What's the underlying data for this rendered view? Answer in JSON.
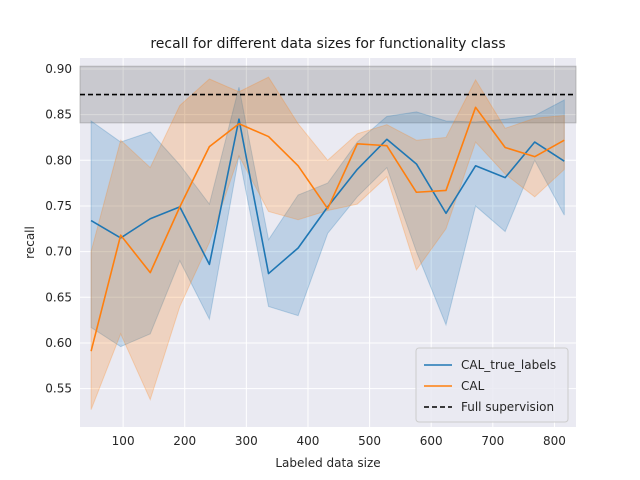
{
  "chart_data": {
    "type": "line",
    "title": "recall for different data sizes for functionality class",
    "xlabel": "Labeled data size",
    "ylabel": "recall",
    "xlim": [
      30,
      835
    ],
    "ylim": [
      0.508,
      0.912
    ],
    "xticks": [
      100,
      200,
      300,
      400,
      500,
      600,
      700,
      800
    ],
    "yticks": [
      0.55,
      0.6,
      0.65,
      0.7,
      0.75,
      0.8,
      0.85,
      0.9
    ],
    "xtick_labels": [
      "100",
      "200",
      "300",
      "400",
      "500",
      "600",
      "700",
      "800"
    ],
    "ytick_labels": [
      "0.55",
      "0.60",
      "0.65",
      "0.70",
      "0.75",
      "0.80",
      "0.85",
      "0.90"
    ],
    "grid": true,
    "legend_position": "lower-right",
    "x": [
      48,
      96,
      144,
      192,
      240,
      288,
      336,
      384,
      432,
      480,
      528,
      576,
      624,
      672,
      720,
      768,
      816
    ],
    "series": [
      {
        "name": "CAL_true_labels",
        "color": "#1f77b4",
        "values": [
          0.734,
          0.715,
          0.736,
          0.749,
          0.686,
          0.845,
          0.676,
          0.704,
          0.749,
          0.79,
          0.823,
          0.796,
          0.742,
          0.794,
          0.781,
          0.82,
          0.799
        ],
        "band_lower": [
          0.617,
          0.596,
          0.61,
          0.69,
          0.626,
          0.805,
          0.64,
          0.63,
          0.72,
          0.76,
          0.792,
          0.7,
          0.62,
          0.75,
          0.722,
          0.8,
          0.74
        ],
        "band_upper": [
          0.843,
          0.82,
          0.831,
          0.795,
          0.752,
          0.88,
          0.713,
          0.762,
          0.775,
          0.82,
          0.848,
          0.853,
          0.843,
          0.842,
          0.845,
          0.849,
          0.866
        ]
      },
      {
        "name": "CAL",
        "color": "#ff7f0e",
        "values": [
          0.591,
          0.718,
          0.677,
          0.749,
          0.815,
          0.84,
          0.826,
          0.794,
          0.747,
          0.818,
          0.816,
          0.765,
          0.767,
          0.858,
          0.814,
          0.804,
          0.822
        ],
        "band_lower": [
          0.527,
          0.61,
          0.538,
          0.64,
          0.71,
          0.805,
          0.744,
          0.735,
          0.745,
          0.752,
          0.782,
          0.68,
          0.725,
          0.82,
          0.785,
          0.76,
          0.79
        ],
        "band_upper": [
          0.7,
          0.822,
          0.792,
          0.86,
          0.889,
          0.875,
          0.891,
          0.84,
          0.8,
          0.829,
          0.839,
          0.822,
          0.825,
          0.888,
          0.835,
          0.846,
          0.849
        ]
      }
    ],
    "reference": {
      "name": "Full supervision",
      "color": "#000000",
      "value": 0.872,
      "band": [
        0.841,
        0.903
      ]
    }
  }
}
